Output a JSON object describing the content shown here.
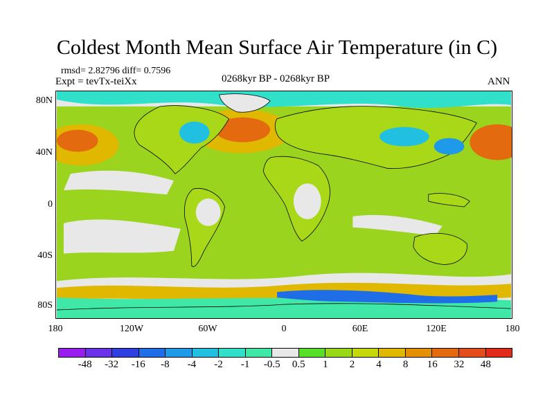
{
  "title": "Coldest Month Mean Surface Air Temperature (in C)",
  "stats": "rmsd= 2.82796  diff= 0.7596",
  "expt": "Expt = tevTx-teiXx",
  "center_label": "0268kyr BP - 0268kyr BP",
  "season": "ANN",
  "y_ticks": [
    "80N",
    "40N",
    "0",
    "40S",
    "80S"
  ],
  "x_ticks": [
    "180",
    "120W",
    "60W",
    "0",
    "60E",
    "120E",
    "180"
  ],
  "colorbar": {
    "labels": [
      "-48",
      "-32",
      "-16",
      "-8",
      "-4",
      "-2",
      "-1",
      "-0.5",
      "0.5",
      "1",
      "2",
      "4",
      "8",
      "16",
      "32",
      "48"
    ],
    "colors": [
      "#9a1df0",
      "#6a33e8",
      "#3040e0",
      "#1f6ee8",
      "#1f9ae8",
      "#22c0e0",
      "#30e0c8",
      "#40e8a8",
      "#e8e8e8",
      "#58e028",
      "#98d814",
      "#c4d80c",
      "#e0b800",
      "#e49000",
      "#e46a10",
      "#e44c1c",
      "#e02a1a"
    ]
  },
  "map": {
    "ocean_color": "#9ad41e",
    "land_color": "#a8d818"
  }
}
